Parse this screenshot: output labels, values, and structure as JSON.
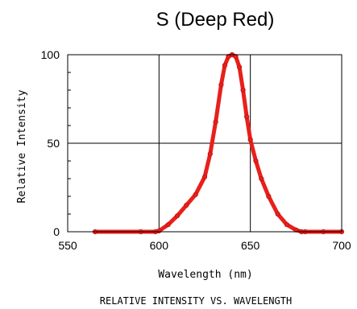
{
  "chart_data": {
    "type": "line",
    "title": "S (Deep Red)",
    "xlabel": "Wavelength (nm)",
    "ylabel": "Relative Intensity",
    "caption": "RELATIVE INTENSITY VS. WAVELENGTH",
    "xlim": [
      550,
      700
    ],
    "ylim": [
      0,
      100
    ],
    "x_ticks": [
      550,
      600,
      650,
      700
    ],
    "y_ticks": [
      0,
      50,
      100
    ],
    "grid": true,
    "series_color": "#e8201c",
    "series": [
      {
        "x": [
          565,
          590,
          598,
          600,
          605,
          610,
          615,
          620,
          625,
          628,
          631,
          634,
          636,
          638,
          640,
          642,
          644,
          646,
          648,
          650,
          653,
          656,
          660,
          665,
          670,
          675,
          678,
          680,
          690,
          700
        ],
        "y": [
          0,
          0,
          0,
          0.5,
          4,
          9,
          15,
          21,
          31,
          44,
          62,
          83,
          94,
          99,
          100,
          99,
          93,
          80,
          65,
          52,
          40,
          30,
          20,
          10,
          4,
          1,
          0,
          0,
          0,
          0
        ]
      }
    ]
  }
}
